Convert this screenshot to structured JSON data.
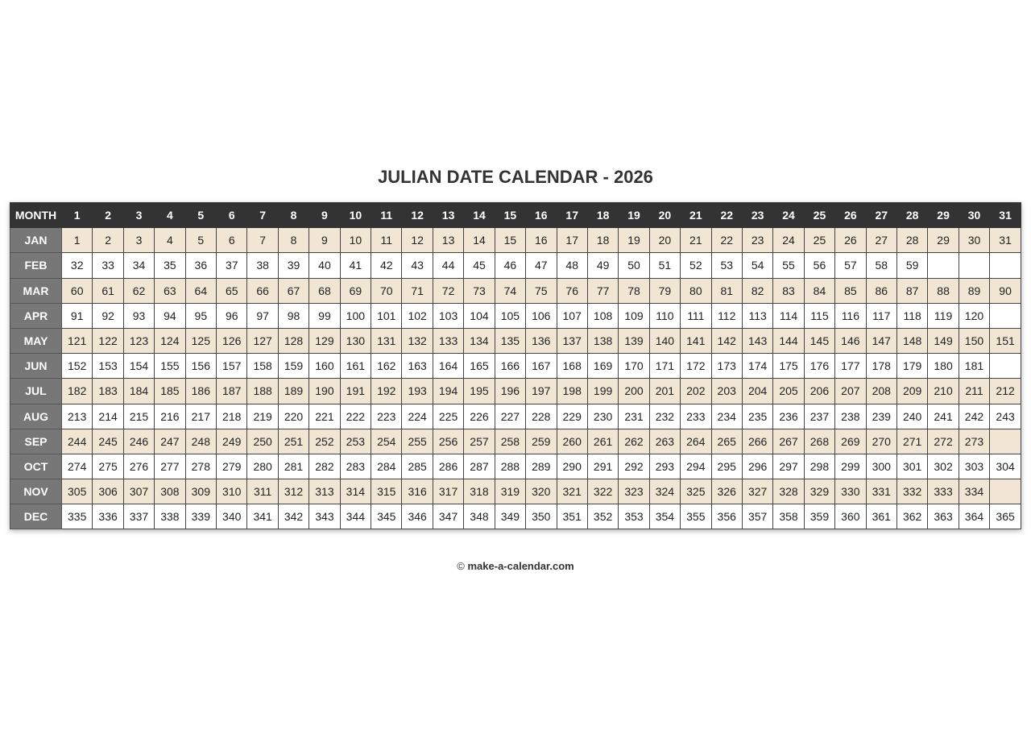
{
  "title": "JULIAN DATE CALENDAR - 2026",
  "header_label": "MONTH",
  "day_headers": [
    1,
    2,
    3,
    4,
    5,
    6,
    7,
    8,
    9,
    10,
    11,
    12,
    13,
    14,
    15,
    16,
    17,
    18,
    19,
    20,
    21,
    22,
    23,
    24,
    25,
    26,
    27,
    28,
    29,
    30,
    31
  ],
  "colors": {
    "header_bg": "#333333",
    "month_bg": "#777777",
    "alt_row_bg": "#f0e6d3"
  },
  "months": [
    {
      "name": "JAN",
      "days": [
        1,
        2,
        3,
        4,
        5,
        6,
        7,
        8,
        9,
        10,
        11,
        12,
        13,
        14,
        15,
        16,
        17,
        18,
        19,
        20,
        21,
        22,
        23,
        24,
        25,
        26,
        27,
        28,
        29,
        30,
        31
      ]
    },
    {
      "name": "FEB",
      "days": [
        32,
        33,
        34,
        35,
        36,
        37,
        38,
        39,
        40,
        41,
        42,
        43,
        44,
        45,
        46,
        47,
        48,
        49,
        50,
        51,
        52,
        53,
        54,
        55,
        56,
        57,
        58,
        59
      ]
    },
    {
      "name": "MAR",
      "days": [
        60,
        61,
        62,
        63,
        64,
        65,
        66,
        67,
        68,
        69,
        70,
        71,
        72,
        73,
        74,
        75,
        76,
        77,
        78,
        79,
        80,
        81,
        82,
        83,
        84,
        85,
        86,
        87,
        88,
        89,
        90
      ]
    },
    {
      "name": "APR",
      "days": [
        91,
        92,
        93,
        94,
        95,
        96,
        97,
        98,
        99,
        100,
        101,
        102,
        103,
        104,
        105,
        106,
        107,
        108,
        109,
        110,
        111,
        112,
        113,
        114,
        115,
        116,
        117,
        118,
        119,
        120
      ]
    },
    {
      "name": "MAY",
      "days": [
        121,
        122,
        123,
        124,
        125,
        126,
        127,
        128,
        129,
        130,
        131,
        132,
        133,
        134,
        135,
        136,
        137,
        138,
        139,
        140,
        141,
        142,
        143,
        144,
        145,
        146,
        147,
        148,
        149,
        150,
        151
      ]
    },
    {
      "name": "JUN",
      "days": [
        152,
        153,
        154,
        155,
        156,
        157,
        158,
        159,
        160,
        161,
        162,
        163,
        164,
        165,
        166,
        167,
        168,
        169,
        170,
        171,
        172,
        173,
        174,
        175,
        176,
        177,
        178,
        179,
        180,
        181
      ]
    },
    {
      "name": "JUL",
      "days": [
        182,
        183,
        184,
        185,
        186,
        187,
        188,
        189,
        190,
        191,
        192,
        193,
        194,
        195,
        196,
        197,
        198,
        199,
        200,
        201,
        202,
        203,
        204,
        205,
        206,
        207,
        208,
        209,
        210,
        211,
        212
      ]
    },
    {
      "name": "AUG",
      "days": [
        213,
        214,
        215,
        216,
        217,
        218,
        219,
        220,
        221,
        222,
        223,
        224,
        225,
        226,
        227,
        228,
        229,
        230,
        231,
        232,
        233,
        234,
        235,
        236,
        237,
        238,
        239,
        240,
        241,
        242,
        243
      ]
    },
    {
      "name": "SEP",
      "days": [
        244,
        245,
        246,
        247,
        248,
        249,
        250,
        251,
        252,
        253,
        254,
        255,
        256,
        257,
        258,
        259,
        260,
        261,
        262,
        263,
        264,
        265,
        266,
        267,
        268,
        269,
        270,
        271,
        272,
        273
      ]
    },
    {
      "name": "OCT",
      "days": [
        274,
        275,
        276,
        277,
        278,
        279,
        280,
        281,
        282,
        283,
        284,
        285,
        286,
        287,
        288,
        289,
        290,
        291,
        292,
        293,
        294,
        295,
        296,
        297,
        298,
        299,
        300,
        301,
        302,
        303,
        304
      ]
    },
    {
      "name": "NOV",
      "days": [
        305,
        306,
        307,
        308,
        309,
        310,
        311,
        312,
        313,
        314,
        315,
        316,
        317,
        318,
        319,
        320,
        321,
        322,
        323,
        324,
        325,
        326,
        327,
        328,
        329,
        330,
        331,
        332,
        333,
        334
      ]
    },
    {
      "name": "DEC",
      "days": [
        335,
        336,
        337,
        338,
        339,
        340,
        341,
        342,
        343,
        344,
        345,
        346,
        347,
        348,
        349,
        350,
        351,
        352,
        353,
        354,
        355,
        356,
        357,
        358,
        359,
        360,
        361,
        362,
        363,
        364,
        365
      ]
    }
  ],
  "footer": {
    "copyright": "©",
    "site": "make-a-calendar.com"
  }
}
